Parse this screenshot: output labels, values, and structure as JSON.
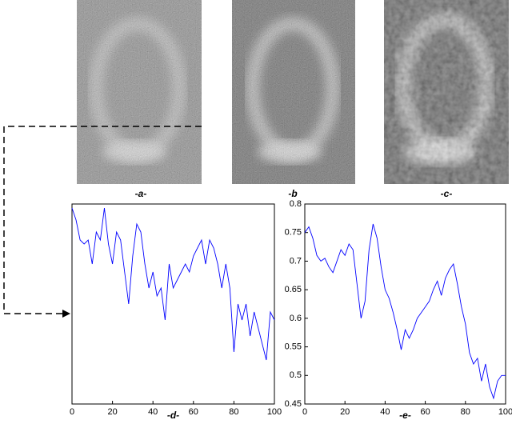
{
  "image_labels": [
    "-a-",
    "-b",
    "-c-"
  ],
  "chart_data": [
    {
      "type": "line",
      "x_label": "-d-",
      "x": [
        0,
        2,
        4,
        6,
        8,
        10,
        12,
        14,
        16,
        18,
        20,
        22,
        24,
        26,
        28,
        30,
        32,
        34,
        36,
        38,
        40,
        42,
        44,
        46,
        48,
        50,
        52,
        54,
        56,
        58,
        60,
        62,
        64,
        66,
        68,
        70,
        72,
        74,
        76,
        78,
        80,
        82,
        84,
        86,
        88,
        90,
        92,
        94,
        96,
        98,
        100
      ],
      "series": [
        {
          "color": "#0000ff",
          "values": [
            0.98,
            0.92,
            0.82,
            0.8,
            0.82,
            0.7,
            0.86,
            0.82,
            0.98,
            0.8,
            0.7,
            0.86,
            0.82,
            0.66,
            0.5,
            0.74,
            0.9,
            0.86,
            0.7,
            0.58,
            0.66,
            0.54,
            0.58,
            0.42,
            0.7,
            0.58,
            0.62,
            0.66,
            0.7,
            0.66,
            0.74,
            0.78,
            0.82,
            0.7,
            0.82,
            0.78,
            0.7,
            0.58,
            0.7,
            0.58,
            0.26,
            0.5,
            0.42,
            0.5,
            0.34,
            0.46,
            0.38,
            0.3,
            0.22,
            0.46,
            0.42
          ]
        }
      ],
      "xlim": [
        0,
        100
      ],
      "xticks": [
        0,
        20,
        40,
        60,
        80,
        100
      ],
      "ylim": [
        0,
        1
      ]
    },
    {
      "type": "line",
      "x_label": "-e-",
      "x": [
        0,
        2,
        4,
        6,
        8,
        10,
        12,
        14,
        16,
        18,
        20,
        22,
        24,
        26,
        28,
        30,
        32,
        34,
        36,
        38,
        40,
        42,
        44,
        46,
        48,
        50,
        52,
        54,
        56,
        58,
        60,
        62,
        64,
        66,
        68,
        70,
        72,
        74,
        76,
        78,
        80,
        82,
        84,
        86,
        88,
        90,
        92,
        94,
        96,
        98,
        100
      ],
      "series": [
        {
          "color": "#0000ff",
          "values": [
            0.75,
            0.76,
            0.74,
            0.71,
            0.7,
            0.705,
            0.69,
            0.68,
            0.7,
            0.72,
            0.71,
            0.73,
            0.72,
            0.66,
            0.6,
            0.63,
            0.72,
            0.765,
            0.74,
            0.69,
            0.65,
            0.635,
            0.61,
            0.58,
            0.545,
            0.58,
            0.565,
            0.58,
            0.6,
            0.61,
            0.62,
            0.63,
            0.65,
            0.665,
            0.64,
            0.67,
            0.685,
            0.695,
            0.66,
            0.62,
            0.59,
            0.54,
            0.52,
            0.53,
            0.49,
            0.52,
            0.48,
            0.46,
            0.49,
            0.5,
            0.5
          ]
        }
      ],
      "xlim": [
        0,
        100
      ],
      "xticks": [
        0,
        20,
        40,
        60,
        80,
        100
      ],
      "ylim": [
        0.45,
        0.8
      ],
      "yticks": [
        0.45,
        0.5,
        0.55,
        0.6,
        0.65,
        0.7,
        0.75,
        0.8
      ]
    }
  ]
}
